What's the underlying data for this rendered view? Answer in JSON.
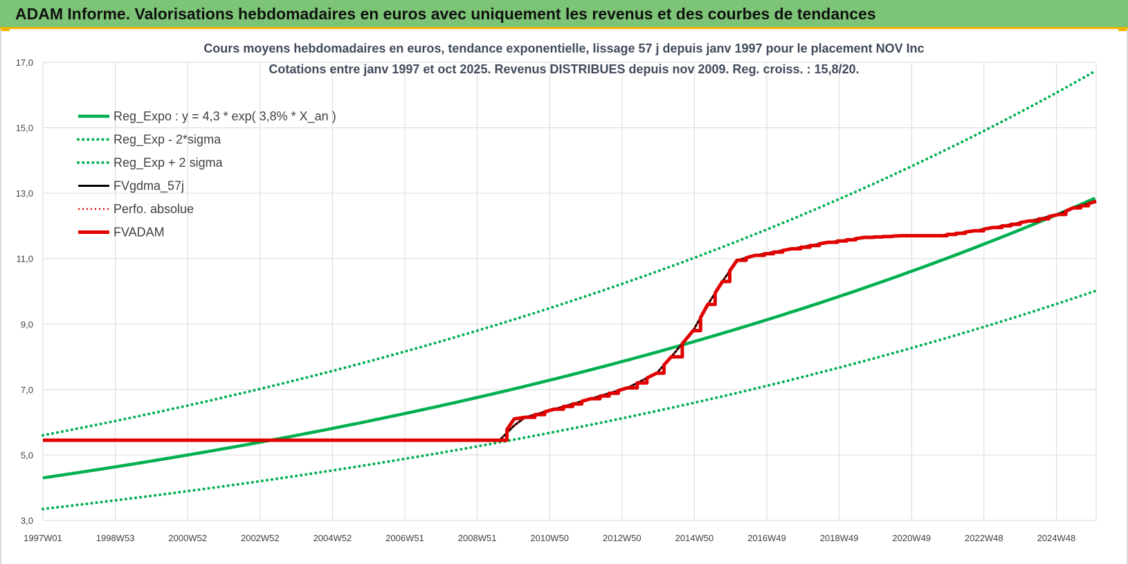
{
  "header": {
    "title": "ADAM Informe. Valorisations hebdomadaires en euros avec uniquement les revenus et des courbes de tendances"
  },
  "colors": {
    "banner": "#7cc576",
    "accent": "#f0b400",
    "green": "#00b050",
    "red": "#e00000",
    "black": "#000000",
    "grid": "#d9d9d9"
  },
  "chart_data": {
    "type": "line",
    "title_lines": [
      "Cours moyens hebdomadaires en euros, tendance exponentielle, lissage 57 j depuis janv 1997 pour le placement NOV Inc",
      "Cotations entre janv 1997 et oct 2025. Revenus DISTRIBUES depuis nov 2009. Reg. croiss. : 15,8/20."
    ],
    "x_ticks": [
      "1997W01",
      "1998W53",
      "2000W52",
      "2002W52",
      "2004W52",
      "2006W51",
      "2008W51",
      "2010W50",
      "2012W50",
      "2014W50",
      "2016W49",
      "2018W49",
      "2020W49",
      "2022W48",
      "2024W48"
    ],
    "y_ticks": [
      "3,0",
      "5,0",
      "7,0",
      "9,0",
      "11,0",
      "13,0",
      "15,0",
      "17,0"
    ],
    "ylim": [
      3,
      17
    ],
    "xlim_years": [
      1997.0,
      2025.83
    ],
    "grid": true,
    "legend_position": "top-left",
    "series": [
      {
        "name": "Reg_Expo : y = 4,3 * exp( 3,8% *  X_an )",
        "style": "solid-green",
        "a": 4.3,
        "rate": 0.038
      },
      {
        "name": "Reg_Exp - 2*sigma",
        "style": "dotted-green",
        "a": 3.35,
        "rate": 0.038
      },
      {
        "name": "Reg_Exp + 2 sigma",
        "style": "dotted-green",
        "a": 5.6,
        "rate": 0.038
      },
      {
        "name": "FVgdma_57j",
        "style": "solid-black",
        "x": [
          1997.0,
          2009.0,
          2009.5,
          2009.9,
          2010.2,
          2011.0,
          2012.0,
          2013.0,
          2013.8,
          2014.2,
          2014.8,
          2015.2,
          2015.6,
          2016.0,
          2016.5,
          2017.5,
          2018.5,
          2019.5,
          2020.5,
          2021.5,
          2022.5,
          2023.0,
          2024.0,
          2024.8,
          2025.2,
          2025.83
        ],
        "y": [
          5.45,
          5.45,
          5.45,
          5.9,
          6.15,
          6.4,
          6.72,
          7.05,
          7.5,
          8.0,
          8.8,
          9.6,
          10.3,
          10.95,
          11.1,
          11.3,
          11.5,
          11.65,
          11.7,
          11.7,
          11.85,
          11.95,
          12.15,
          12.35,
          12.55,
          12.75
        ]
      },
      {
        "name": "Perfo. absolue",
        "style": "dotted-red",
        "x": [
          1997.0,
          2009.0,
          2009.5,
          2009.9,
          2010.2,
          2011.0,
          2012.0,
          2013.0,
          2013.8,
          2014.2,
          2014.8,
          2015.2,
          2015.6,
          2016.0,
          2016.5,
          2017.5,
          2018.5,
          2019.5,
          2020.5,
          2021.5,
          2022.5,
          2023.0,
          2024.0,
          2024.8,
          2025.2,
          2025.83
        ],
        "y": [
          5.45,
          5.45,
          5.45,
          5.9,
          6.15,
          6.4,
          6.72,
          7.05,
          7.5,
          8.0,
          8.8,
          9.6,
          10.3,
          10.95,
          11.1,
          11.3,
          11.5,
          11.65,
          11.7,
          11.7,
          11.85,
          11.95,
          12.15,
          12.35,
          12.55,
          12.75
        ]
      },
      {
        "name": "FVADAM",
        "style": "solid-red",
        "x": [
          1997.0,
          2009.0,
          2009.5,
          2009.9,
          2010.2,
          2011.0,
          2012.0,
          2013.0,
          2013.8,
          2014.2,
          2014.8,
          2015.2,
          2015.6,
          2016.0,
          2016.5,
          2017.5,
          2018.5,
          2019.5,
          2020.5,
          2021.5,
          2022.5,
          2023.0,
          2024.0,
          2024.8,
          2025.2,
          2025.83
        ],
        "y": [
          5.45,
          5.45,
          5.45,
          6.1,
          6.15,
          6.4,
          6.72,
          7.05,
          7.5,
          8.0,
          8.8,
          9.6,
          10.3,
          10.95,
          11.1,
          11.3,
          11.5,
          11.65,
          11.7,
          11.7,
          11.85,
          11.95,
          12.15,
          12.35,
          12.55,
          12.75
        ]
      }
    ]
  }
}
